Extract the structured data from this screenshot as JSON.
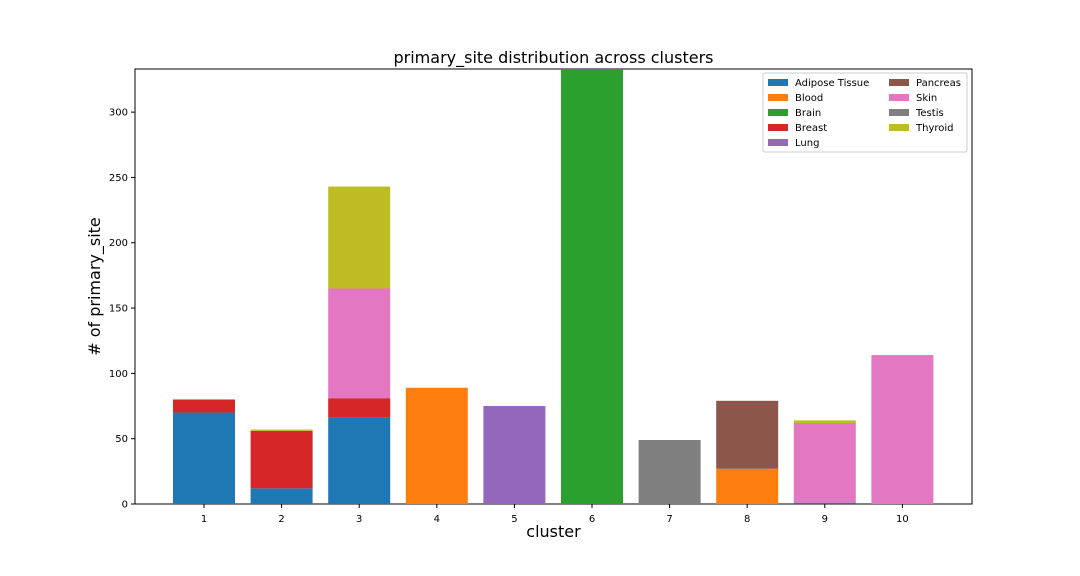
{
  "chart_data": {
    "type": "bar",
    "stacked": true,
    "title": "primary_site distribution across clusters",
    "xlabel": "cluster",
    "ylabel": "# of primary_site",
    "categories": [
      "1",
      "2",
      "3",
      "4",
      "5",
      "6",
      "7",
      "8",
      "9",
      "10"
    ],
    "ylim": [
      0,
      333
    ],
    "yticks": [
      0,
      50,
      100,
      150,
      200,
      250,
      300
    ],
    "grid": false,
    "legend_position": "top-right",
    "series": [
      {
        "name": "Adipose Tissue",
        "color": "#1f77b4",
        "values": [
          70,
          12,
          66,
          0,
          0,
          0,
          0,
          0,
          1,
          0
        ]
      },
      {
        "name": "Blood",
        "color": "#ff7f0e",
        "values": [
          0,
          0,
          0,
          89,
          0,
          0,
          0,
          27,
          0,
          0
        ]
      },
      {
        "name": "Brain",
        "color": "#2ca02c",
        "values": [
          0,
          0,
          0,
          0,
          0,
          333,
          0,
          0,
          0,
          0
        ]
      },
      {
        "name": "Breast",
        "color": "#d62728",
        "values": [
          10,
          44,
          15,
          0,
          0,
          0,
          0,
          0,
          0,
          0
        ]
      },
      {
        "name": "Lung",
        "color": "#9467bd",
        "values": [
          0,
          0,
          0,
          0,
          75,
          0,
          0,
          0,
          0,
          0
        ]
      },
      {
        "name": "Pancreas",
        "color": "#8c564b",
        "values": [
          0,
          0,
          0,
          0,
          0,
          0,
          0,
          52,
          0,
          0
        ]
      },
      {
        "name": "Skin",
        "color": "#e377c2",
        "values": [
          0,
          0,
          84,
          0,
          0,
          0,
          0,
          0,
          61,
          114
        ]
      },
      {
        "name": "Testis",
        "color": "#7f7f7f",
        "values": [
          0,
          0,
          0,
          0,
          0,
          0,
          49,
          0,
          0,
          0
        ]
      },
      {
        "name": "Thyroid",
        "color": "#bcbd22",
        "values": [
          0,
          1,
          78,
          0,
          0,
          0,
          0,
          0,
          2,
          0
        ]
      }
    ]
  }
}
